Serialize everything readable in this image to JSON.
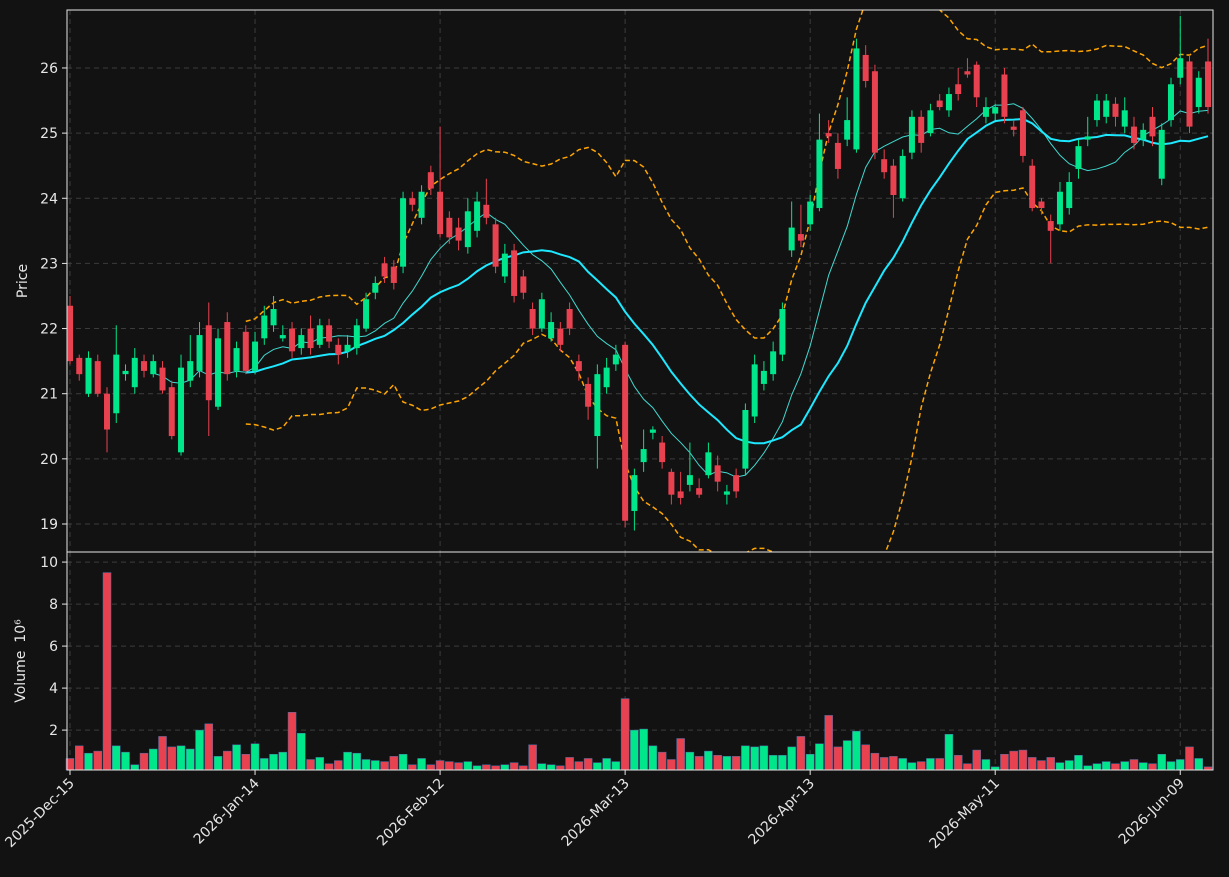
{
  "chart_data": {
    "type": "candlestick",
    "categories": [
      "2025-Dec-15",
      null,
      null,
      null,
      null,
      null,
      null,
      null,
      null,
      null,
      null,
      null,
      null,
      null,
      null,
      null,
      null,
      null,
      null,
      null,
      "2026-Jan-14",
      null,
      null,
      null,
      null,
      null,
      null,
      null,
      null,
      null,
      null,
      null,
      null,
      null,
      null,
      null,
      null,
      null,
      null,
      null,
      "2026-Feb-12",
      null,
      null,
      null,
      null,
      null,
      null,
      null,
      null,
      null,
      null,
      null,
      null,
      null,
      null,
      null,
      null,
      null,
      null,
      null,
      "2026-Mar-13",
      null,
      null,
      null,
      null,
      null,
      null,
      null,
      null,
      null,
      null,
      null,
      null,
      null,
      null,
      null,
      null,
      null,
      null,
      null,
      "2026-Apr-13",
      null,
      null,
      null,
      null,
      null,
      null,
      null,
      null,
      null,
      null,
      null,
      null,
      null,
      null,
      null,
      null,
      null,
      null,
      null,
      "2026-May-11",
      null,
      null,
      null,
      null,
      null,
      null,
      null,
      null,
      null,
      null,
      null,
      null,
      null,
      null,
      null,
      null,
      null,
      null,
      null,
      "2026-Jun-09",
      null,
      null,
      null
    ],
    "open": [
      22.35,
      21.55,
      21.0,
      21.5,
      21.0,
      20.7,
      21.3,
      21.1,
      21.5,
      21.3,
      21.4,
      21.1,
      20.1,
      21.2,
      21.35,
      22.05,
      20.8,
      22.1,
      21.35,
      21.95,
      21.35,
      21.85,
      22.05,
      21.85,
      22.0,
      21.7,
      22.0,
      21.75,
      22.05,
      21.75,
      21.65,
      21.7,
      22.0,
      22.55,
      23.0,
      22.95,
      22.95,
      24.0,
      23.7,
      24.4,
      24.1,
      23.7,
      23.55,
      23.25,
      23.5,
      23.9,
      23.6,
      22.8,
      23.2,
      22.8,
      22.3,
      22.0,
      21.85,
      22.0,
      22.3,
      21.5,
      21.15,
      20.35,
      21.1,
      21.45,
      21.75,
      19.2,
      19.95,
      20.4,
      20.25,
      19.8,
      19.5,
      19.6,
      19.55,
      19.75,
      19.9,
      19.45,
      19.75,
      19.85,
      20.65,
      21.15,
      21.3,
      21.6,
      23.2,
      23.45,
      23.6,
      23.85,
      25.0,
      24.85,
      24.9,
      24.75,
      26.2,
      25.95,
      24.6,
      24.5,
      24.0,
      24.7,
      25.25,
      25.0,
      25.5,
      25.35,
      25.75,
      25.95,
      26.05,
      25.25,
      25.3,
      25.9,
      25.1,
      25.35,
      24.5,
      23.95,
      23.65,
      23.6,
      23.85,
      24.45,
      24.9,
      25.2,
      25.25,
      25.45,
      25.1,
      25.1,
      24.9,
      25.25,
      24.3,
      25.2,
      25.85,
      26.1,
      25.4,
      26.1
    ],
    "high": [
      22.5,
      21.6,
      21.65,
      21.6,
      21.1,
      22.05,
      21.45,
      21.7,
      21.6,
      21.6,
      21.5,
      21.2,
      21.6,
      21.9,
      22.1,
      22.4,
      22.0,
      22.25,
      21.8,
      22.05,
      21.95,
      22.35,
      22.5,
      22.05,
      22.1,
      22.0,
      22.2,
      22.15,
      22.15,
      21.85,
      21.9,
      22.15,
      22.55,
      22.8,
      23.1,
      23.05,
      24.1,
      24.1,
      24.2,
      24.5,
      25.1,
      23.8,
      23.7,
      24.0,
      24.1,
      24.3,
      23.7,
      23.3,
      23.3,
      22.9,
      22.4,
      22.55,
      22.25,
      22.1,
      22.4,
      21.6,
      21.25,
      21.45,
      21.55,
      21.75,
      21.8,
      19.85,
      20.45,
      20.5,
      20.35,
      19.85,
      19.8,
      20.25,
      19.7,
      20.25,
      20.05,
      19.6,
      19.85,
      20.85,
      21.6,
      21.5,
      21.8,
      22.4,
      23.95,
      23.9,
      24.05,
      25.3,
      25.2,
      25.0,
      25.55,
      26.45,
      26.35,
      26.05,
      24.75,
      24.6,
      24.75,
      25.35,
      25.35,
      25.45,
      25.6,
      25.7,
      26.0,
      26.15,
      26.1,
      25.55,
      25.45,
      26.0,
      25.2,
      25.4,
      24.6,
      24.0,
      23.75,
      24.25,
      24.4,
      24.9,
      25.25,
      25.6,
      25.6,
      25.55,
      25.55,
      25.25,
      25.15,
      25.4,
      25.15,
      25.85,
      26.8,
      26.2,
      25.95,
      26.45
    ],
    "low": [
      21.45,
      21.2,
      20.95,
      20.95,
      20.1,
      20.55,
      21.2,
      21.0,
      21.25,
      21.25,
      21.0,
      20.3,
      20.05,
      21.1,
      21.25,
      20.35,
      20.75,
      21.2,
      21.25,
      21.3,
      21.3,
      21.75,
      21.95,
      21.8,
      21.55,
      21.6,
      21.6,
      21.7,
      21.7,
      21.45,
      21.55,
      21.6,
      21.95,
      22.45,
      22.7,
      22.6,
      22.85,
      23.8,
      23.6,
      24.05,
      23.4,
      23.3,
      23.2,
      23.15,
      23.4,
      23.6,
      22.85,
      22.7,
      22.4,
      22.45,
      21.9,
      21.95,
      21.8,
      21.65,
      21.9,
      21.2,
      20.6,
      19.85,
      21.0,
      21.35,
      18.95,
      18.9,
      19.8,
      20.3,
      19.85,
      19.3,
      19.3,
      19.5,
      19.4,
      19.7,
      19.5,
      19.3,
      19.4,
      19.75,
      20.55,
      21.05,
      21.2,
      21.5,
      23.1,
      23.25,
      23.5,
      23.8,
      24.85,
      24.3,
      24.8,
      24.7,
      25.7,
      24.6,
      24.3,
      23.7,
      23.95,
      24.6,
      24.7,
      24.95,
      25.35,
      25.25,
      25.5,
      25.85,
      25.4,
      25.15,
      25.2,
      25.15,
      24.95,
      24.55,
      23.8,
      23.75,
      23.0,
      23.5,
      23.75,
      24.3,
      24.8,
      25.1,
      25.15,
      25.1,
      25.0,
      24.75,
      24.8,
      24.8,
      24.2,
      25.1,
      25.75,
      25.0,
      25.3,
      25.3
    ],
    "close": [
      21.5,
      21.3,
      21.55,
      21.0,
      20.45,
      21.6,
      21.35,
      21.55,
      21.35,
      21.5,
      21.05,
      20.35,
      21.4,
      21.5,
      21.9,
      20.9,
      21.85,
      21.3,
      21.7,
      21.35,
      21.8,
      22.2,
      22.3,
      21.9,
      21.65,
      21.9,
      21.7,
      22.05,
      21.8,
      21.6,
      21.75,
      22.05,
      22.45,
      22.7,
      22.8,
      22.7,
      24.0,
      23.9,
      24.1,
      24.15,
      23.45,
      23.4,
      23.35,
      23.8,
      23.95,
      23.7,
      22.95,
      23.15,
      22.5,
      22.55,
      22.0,
      22.45,
      22.1,
      21.75,
      22.0,
      21.35,
      20.8,
      21.3,
      21.4,
      21.6,
      19.05,
      19.75,
      20.15,
      20.45,
      19.95,
      19.45,
      19.4,
      19.75,
      19.45,
      20.1,
      19.65,
      19.5,
      19.5,
      20.75,
      21.45,
      21.35,
      21.65,
      22.3,
      23.55,
      23.35,
      23.95,
      24.9,
      24.95,
      24.45,
      25.2,
      26.3,
      25.8,
      24.7,
      24.4,
      24.05,
      24.65,
      25.25,
      24.85,
      25.35,
      25.4,
      25.6,
      25.6,
      25.9,
      25.55,
      25.4,
      25.4,
      25.25,
      25.05,
      24.65,
      23.85,
      23.85,
      23.5,
      24.1,
      24.25,
      24.8,
      24.95,
      25.5,
      25.5,
      25.25,
      25.35,
      24.85,
      25.05,
      24.95,
      25.05,
      25.75,
      26.15,
      25.1,
      25.85,
      25.4
    ],
    "up_color": "#00e68a",
    "down_color": "#e8414f",
    "ylabel": "Price",
    "ylim": [
      18.57,
      26.89
    ],
    "yticks": [
      19,
      20,
      21,
      22,
      23,
      24,
      25,
      26
    ],
    "grid": true,
    "mav": [
      10,
      20
    ],
    "mav_colors": [
      "#40d9d0",
      "#1ee8ff"
    ],
    "bollinger": {
      "period": 20,
      "std": 2,
      "color": "#ffa500"
    },
    "volume": {
      "values": [
        0.65,
        1.25,
        0.9,
        1.0,
        9.5,
        1.25,
        0.95,
        0.35,
        0.9,
        1.1,
        1.7,
        1.2,
        1.25,
        1.1,
        2.0,
        2.3,
        0.75,
        1.0,
        1.3,
        0.85,
        1.35,
        0.65,
        0.85,
        0.95,
        2.85,
        1.85,
        0.6,
        0.7,
        0.4,
        0.55,
        0.95,
        0.9,
        0.6,
        0.55,
        0.5,
        0.75,
        0.85,
        0.35,
        0.65,
        0.35,
        0.55,
        0.5,
        0.45,
        0.5,
        0.3,
        0.35,
        0.3,
        0.35,
        0.45,
        0.3,
        1.3,
        0.4,
        0.35,
        0.3,
        0.7,
        0.5,
        0.65,
        0.45,
        0.65,
        0.5,
        3.5,
        2.0,
        2.05,
        1.25,
        0.95,
        0.6,
        1.6,
        0.95,
        0.75,
        1.0,
        0.8,
        0.75,
        0.75,
        1.25,
        1.2,
        1.25,
        0.8,
        0.8,
        1.2,
        1.7,
        0.85,
        1.35,
        2.7,
        1.2,
        1.5,
        1.95,
        1.3,
        0.9,
        0.7,
        0.75,
        0.65,
        0.45,
        0.5,
        0.65,
        0.65,
        1.8,
        0.8,
        0.4,
        1.05,
        0.6,
        0.25,
        0.85,
        1.0,
        1.05,
        0.7,
        0.55,
        0.7,
        0.45,
        0.55,
        0.8,
        0.3,
        0.4,
        0.5,
        0.4,
        0.5,
        0.6,
        0.45,
        0.4,
        0.85,
        0.5,
        0.6,
        1.2,
        0.65,
        0.25
      ],
      "ylabel": "Volume",
      "offset_label": "10⁶",
      "ylim": [
        0.1,
        10.48
      ],
      "yticks": [
        2,
        4,
        6,
        8,
        10
      ]
    }
  }
}
